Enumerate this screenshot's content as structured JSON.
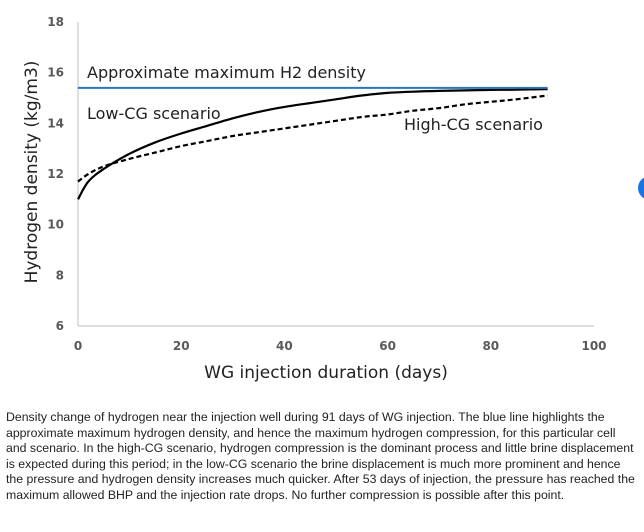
{
  "chart_data": {
    "type": "line",
    "xlabel": "WG injection duration (days)",
    "ylabel": "Hydrogen density (kg/m3)",
    "xlim": [
      0,
      100
    ],
    "ylim": [
      6,
      18
    ],
    "x_ticks": [
      "0",
      "20",
      "40",
      "60",
      "80",
      "100"
    ],
    "y_ticks": [
      "6",
      "8",
      "10",
      "12",
      "14",
      "16",
      "18"
    ],
    "grid": false,
    "annotations": {
      "max_density": "Approximate maximum H2 density",
      "low_cg": "Low-CG scenario",
      "high_cg": "High-CG scenario"
    },
    "series": [
      {
        "name": "Low-CG scenario",
        "style": "solid",
        "color": "#000000",
        "x": [
          0,
          2,
          5,
          10,
          15,
          20,
          25,
          30,
          35,
          40,
          45,
          50,
          55,
          60,
          65,
          70,
          75,
          80,
          85,
          91
        ],
        "y": [
          11.0,
          11.7,
          12.2,
          12.8,
          13.25,
          13.6,
          13.9,
          14.2,
          14.45,
          14.65,
          14.8,
          14.95,
          15.1,
          15.2,
          15.25,
          15.28,
          15.3,
          15.32,
          15.33,
          15.35
        ]
      },
      {
        "name": "High-CG scenario",
        "style": "dashed",
        "color": "#000000",
        "x": [
          0,
          2,
          5,
          10,
          15,
          20,
          25,
          30,
          35,
          40,
          45,
          50,
          55,
          60,
          65,
          70,
          75,
          80,
          85,
          91
        ],
        "y": [
          11.7,
          12.0,
          12.3,
          12.6,
          12.85,
          13.1,
          13.3,
          13.5,
          13.65,
          13.8,
          13.95,
          14.1,
          14.25,
          14.35,
          14.5,
          14.6,
          14.75,
          14.85,
          14.95,
          15.1
        ]
      },
      {
        "name": "Approximate maximum H2 density",
        "style": "solid",
        "color": "#2e75b6",
        "x": [
          0,
          91
        ],
        "y": [
          15.4,
          15.4
        ]
      }
    ]
  },
  "caption": "Density change of hydrogen near the injection well during 91 days of WG injection. The blue line highlights the approximate maximum hydrogen density, and hence the maximum hydrogen compression, for this particular cell and scenario. In the high-CG scenario, hydrogen compression is the dominant process and little brine displacement is expected during this period; in the low-CG scenario the brine displacement is much more prominent and hence the pressure and hydrogen density increases much quicker. After 53 days of injection, the pressure has reached the maximum allowed BHP and the injection rate drops. No further compression is possible after this point."
}
